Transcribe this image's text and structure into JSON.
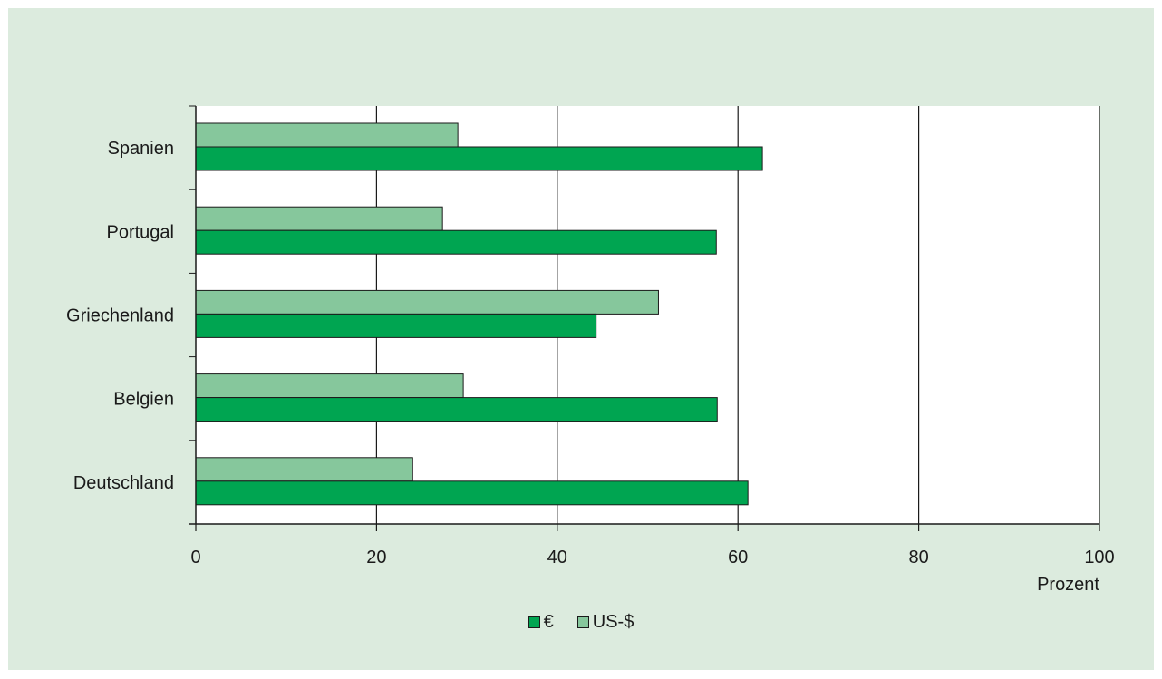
{
  "chart_data": {
    "type": "bar",
    "orientation": "horizontal",
    "categories": [
      "Spanien",
      "Portugal",
      "Griechenland",
      "Belgien",
      "Deutschland"
    ],
    "series": [
      {
        "name": "US-$",
        "values": [
          29,
          27.3,
          51.2,
          29.6,
          24
        ],
        "color": "#86c79c"
      },
      {
        "name": "€",
        "values": [
          62.7,
          57.6,
          44.3,
          57.7,
          61.1
        ],
        "color": "#00a551"
      }
    ],
    "xlabel": "Prozent",
    "xlim": [
      0,
      100
    ],
    "xticks": [
      0,
      20,
      40,
      60,
      80,
      100
    ],
    "grid": true,
    "legend_position": "bottom-center",
    "legend_order": [
      "€",
      "US-$"
    ],
    "plot_background": "#ffffff",
    "panel_background": "#dcebde"
  }
}
